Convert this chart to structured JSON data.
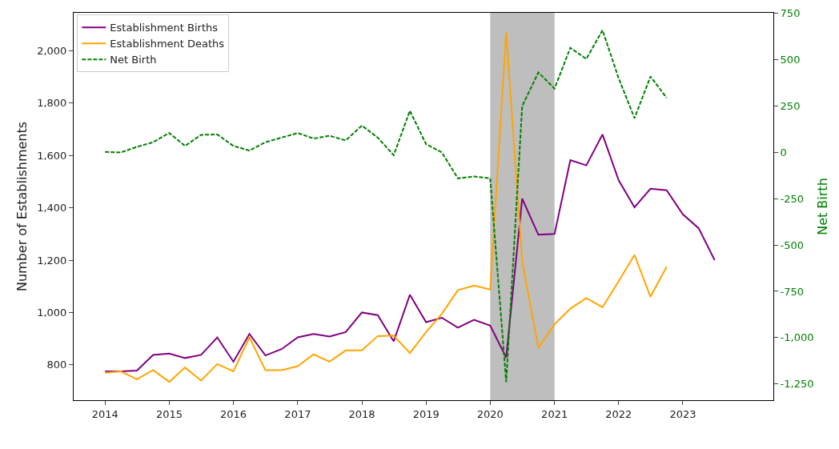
{
  "chart_data": {
    "type": "line",
    "xlabel": null,
    "ylabel": "Number of Establishments",
    "y2label": "Net Birth",
    "x": [
      "2014-01",
      "2014-04",
      "2014-07",
      "2014-10",
      "2015-01",
      "2015-04",
      "2015-07",
      "2015-10",
      "2016-01",
      "2016-04",
      "2016-07",
      "2016-10",
      "2017-01",
      "2017-04",
      "2017-07",
      "2017-10",
      "2018-01",
      "2018-04",
      "2018-07",
      "2018-10",
      "2019-01",
      "2019-04",
      "2019-07",
      "2019-10",
      "2020-01",
      "2020-04",
      "2020-07",
      "2020-10",
      "2021-01",
      "2021-04",
      "2021-07",
      "2021-10",
      "2022-01",
      "2022-04",
      "2022-07",
      "2022-10",
      "2023-01",
      "2023-04",
      "2023-07"
    ],
    "series": [
      {
        "name": "Establishment Births",
        "color": "#800080",
        "values": [
          775,
          775,
          778,
          838,
          843,
          826,
          838,
          905,
          812,
          918,
          836,
          860,
          905,
          918,
          908,
          925,
          1000,
          990,
          890,
          1068,
          963,
          980,
          942,
          972,
          950,
          828,
          1435,
          1297,
          1300,
          1582,
          1562,
          1680,
          1505,
          1402,
          1473,
          1467,
          1375,
          1322,
          1200
        ]
      },
      {
        "name": "Establishment Deaths",
        "color": "#ffa500",
        "values": [
          770,
          775,
          745,
          780,
          735,
          790,
          740,
          803,
          775,
          905,
          780,
          780,
          795,
          840,
          812,
          855,
          855,
          910,
          912,
          845,
          925,
          995,
          1085,
          1103,
          1088,
          2072,
          1195,
          865,
          955,
          1015,
          1055,
          1020,
          1120,
          1220,
          1060,
          1175,
          null,
          null,
          null
        ]
      },
      {
        "name": "Net Birth",
        "color": "#008000",
        "axis": "y2",
        "line_style": "dashed",
        "values": [
          3,
          0,
          30,
          55,
          105,
          35,
          95,
          97,
          35,
          10,
          55,
          80,
          105,
          75,
          90,
          65,
          145,
          80,
          -15,
          225,
          45,
          0,
          -140,
          -130,
          -140,
          -1240,
          250,
          432,
          345,
          565,
          505,
          660,
          400,
          185,
          410,
          295,
          null,
          null,
          null
        ]
      }
    ],
    "xlim": [
      "2013-07-06",
      "2024-05-30"
    ],
    "xticks": [
      {
        "value": "2014",
        "label": "2014"
      },
      {
        "value": "2015",
        "label": "2015"
      },
      {
        "value": "2016",
        "label": "2016"
      },
      {
        "value": "2017",
        "label": "2017"
      },
      {
        "value": "2018",
        "label": "2018"
      },
      {
        "value": "2019",
        "label": "2019"
      },
      {
        "value": "2020",
        "label": "2020"
      },
      {
        "value": "2021",
        "label": "2021"
      },
      {
        "value": "2022",
        "label": "2022"
      },
      {
        "value": "2023",
        "label": "2023"
      }
    ],
    "ylim": [
      665,
      2145
    ],
    "yticks": [
      800,
      {
        "value": 1000,
        "label": "1,000"
      },
      {
        "value": 1200,
        "label": "1,200"
      },
      {
        "value": 1400,
        "label": "1,400"
      },
      {
        "value": 1600,
        "label": "1,600"
      },
      {
        "value": 1800,
        "label": "1,800"
      },
      {
        "value": 2000,
        "label": "2,000"
      }
    ],
    "y2lim": [
      -1338,
      754
    ],
    "y2ticks": [
      {
        "value": -1250,
        "label": "-1,250"
      },
      {
        "value": -1000,
        "label": "-1,000"
      },
      -750,
      -500,
      -250,
      0,
      250,
      500,
      750
    ],
    "bands": [
      {
        "axis": "x",
        "from": "2020",
        "to": "2021",
        "color": "#bebebe"
      }
    ],
    "legend": "top left",
    "grid": false
  }
}
